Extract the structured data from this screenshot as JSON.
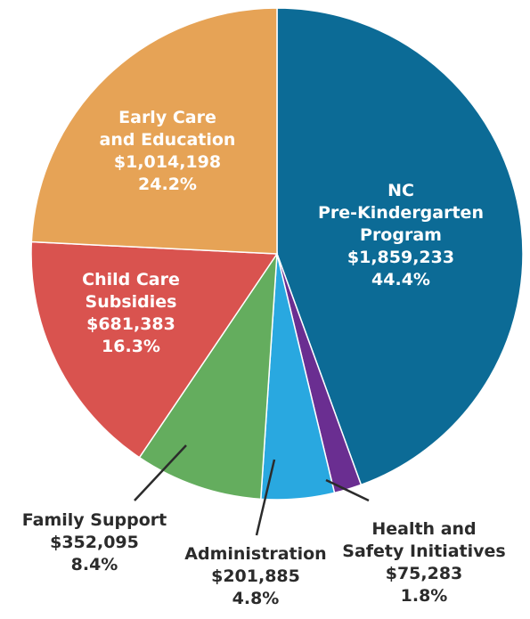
{
  "chart_data": {
    "type": "pie",
    "slices": [
      {
        "label_lines": [
          "NC",
          "Pre-Kindergarten",
          "Program"
        ],
        "amount": "$1,859,233",
        "percent": "44.4%",
        "value": 44.4,
        "color": "#0c6b96"
      },
      {
        "label_lines": [
          "Health and",
          "Safety Initiatives"
        ],
        "amount": "$75,283",
        "percent": "1.8%",
        "value": 1.8,
        "color": "#6a2e91"
      },
      {
        "label_lines": [
          "Administration"
        ],
        "amount": "$201,885",
        "percent": "4.8%",
        "value": 4.8,
        "color": "#29a8e0"
      },
      {
        "label_lines": [
          "Family Support"
        ],
        "amount": "$352,095",
        "percent": "8.4%",
        "value": 8.4,
        "color": "#64ad5e"
      },
      {
        "label_lines": [
          "Child Care",
          "Subsidies"
        ],
        "amount": "$681,383",
        "percent": "16.3%",
        "value": 16.3,
        "color": "#d9534f"
      },
      {
        "label_lines": [
          "Early Care",
          "and Education"
        ],
        "amount": "$1,014,198",
        "percent": "24.2%",
        "value": 24.2,
        "color": "#e6a356"
      }
    ]
  }
}
